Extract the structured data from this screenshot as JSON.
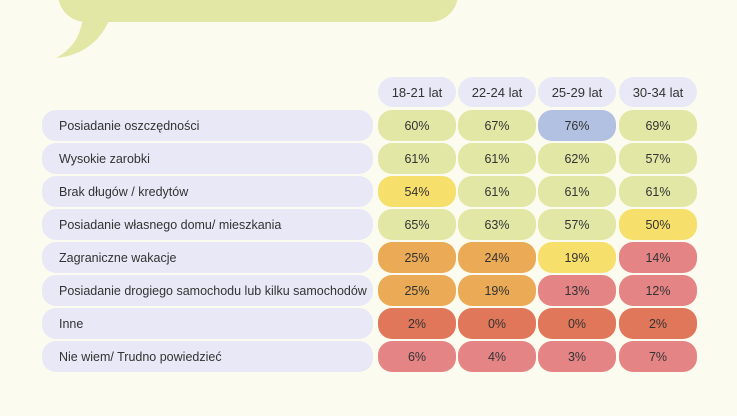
{
  "chart_data": {
    "type": "table",
    "columns": [
      "18-21 lat",
      "22-24 lat",
      "25-29 lat",
      "30-34 lat"
    ],
    "rows": [
      {
        "label": "Posiadanie oszczędności",
        "values": [
          "60%",
          "67%",
          "76%",
          "69%"
        ],
        "colors": [
          "#e2e7a6",
          "#e2e7a6",
          "#b2c0e2",
          "#e2e7a6"
        ]
      },
      {
        "label": "Wysokie zarobki",
        "values": [
          "61%",
          "61%",
          "62%",
          "57%"
        ],
        "colors": [
          "#e2e7a6",
          "#e2e7a6",
          "#e2e7a6",
          "#e2e7a6"
        ]
      },
      {
        "label": "Brak długów / kredytów",
        "values": [
          "54%",
          "61%",
          "61%",
          "61%"
        ],
        "colors": [
          "#f7df6c",
          "#e2e7a6",
          "#e2e7a6",
          "#e2e7a6"
        ]
      },
      {
        "label": "Posiadanie własnego domu/ mieszkania",
        "values": [
          "65%",
          "63%",
          "57%",
          "50%"
        ],
        "colors": [
          "#e2e7a6",
          "#e2e7a6",
          "#e2e7a6",
          "#f7df6c"
        ]
      },
      {
        "label": "Zagraniczne wakacje",
        "values": [
          "25%",
          "24%",
          "19%",
          "14%"
        ],
        "colors": [
          "#eaaa56",
          "#eaaa56",
          "#f7df6c",
          "#e48484"
        ]
      },
      {
        "label": "Posiadanie drogiego samochodu lub kilku samochodów",
        "values": [
          "25%",
          "19%",
          "13%",
          "12%"
        ],
        "colors": [
          "#eaaa56",
          "#eaaa56",
          "#e48484",
          "#e48484"
        ]
      },
      {
        "label": "Inne",
        "values": [
          "2%",
          "0%",
          "0%",
          "2%"
        ],
        "colors": [
          "#e0765a",
          "#e0765a",
          "#e0765a",
          "#e0765a"
        ]
      },
      {
        "label": "Nie wiem/ Trudno powiedzieć",
        "values": [
          "6%",
          "4%",
          "3%",
          "7%"
        ],
        "colors": [
          "#e48484",
          "#e48484",
          "#e48484",
          "#e48484"
        ]
      }
    ]
  },
  "colors": {
    "background": "#fcfbf0",
    "bubble": "#e2e7a6",
    "label_bg": "#e9e8f6"
  }
}
